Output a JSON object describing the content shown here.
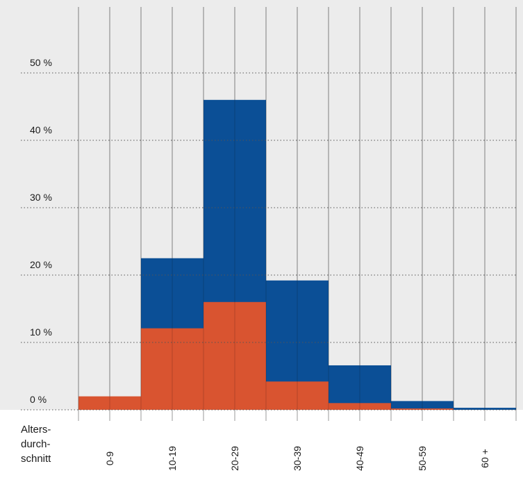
{
  "chart_data": {
    "type": "bar",
    "stacked": false,
    "overlapping": true,
    "categories": [
      "0-9",
      "10-19",
      "20-29",
      "30-39",
      "40-49",
      "50-59",
      "60 +"
    ],
    "series": [
      {
        "values": [
          1.0,
          22.5,
          46.0,
          19.2,
          6.6,
          1.3,
          0.3
        ],
        "color": "#0b4f96"
      },
      {
        "values": [
          2.0,
          12.1,
          16.0,
          4.2,
          1.0,
          0.2,
          0.0
        ],
        "color": "#d95430"
      }
    ],
    "y_ticks": [
      "0 %",
      "10 %",
      "20 %",
      "30 %",
      "40 %",
      "50 %"
    ],
    "y_tick_values": [
      0,
      10,
      20,
      30,
      40,
      50
    ],
    "xlabel": "Alters-\ndurch-\nschnitt",
    "ylim": [
      0,
      60
    ],
    "grid": true,
    "background": "#ececec"
  }
}
